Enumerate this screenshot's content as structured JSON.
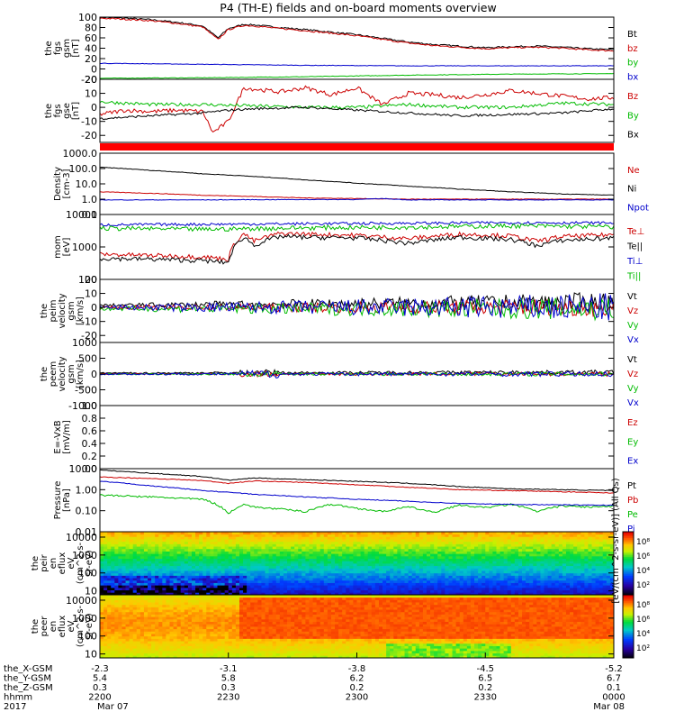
{
  "figure": {
    "title": "P4 (TH-E) fields and on-board moments overview"
  },
  "chart_data": [
    {
      "id": "fgs_bt",
      "type": "line",
      "ylabel": [
        "the",
        "fgs",
        "gsm",
        "[nT]"
      ],
      "ylim": [
        -20,
        100
      ],
      "yticks": [
        {
          "v": 100,
          "t": "100"
        },
        {
          "v": 80,
          "t": "80"
        },
        {
          "v": 60,
          "t": "60"
        },
        {
          "v": 40,
          "t": "40"
        },
        {
          "v": 20,
          "t": "20"
        },
        {
          "v": 0,
          "t": "0"
        },
        {
          "v": -20,
          "t": "-20"
        }
      ],
      "series": [
        {
          "name": "Bt",
          "color": "#000000",
          "x": [
            0,
            0.05,
            0.1,
            0.15,
            0.2,
            0.23,
            0.25,
            0.28,
            0.3,
            0.35,
            0.4,
            0.45,
            0.5,
            0.55,
            0.6,
            0.65,
            0.7,
            0.75,
            0.8,
            0.85,
            0.9,
            0.95,
            1.0
          ],
          "y": [
            100,
            98,
            95,
            90,
            83,
            60,
            78,
            86,
            85,
            80,
            76,
            71,
            66,
            59,
            52,
            47,
            44,
            41,
            43,
            44,
            42,
            39,
            37
          ],
          "noise": 1.5
        },
        {
          "name": "bz",
          "color": "#cc0000",
          "x": [
            0,
            0.05,
            0.1,
            0.15,
            0.2,
            0.23,
            0.25,
            0.28,
            0.3,
            0.35,
            0.4,
            0.45,
            0.5,
            0.55,
            0.6,
            0.65,
            0.7,
            0.75,
            0.8,
            0.85,
            0.9,
            0.95,
            1.0
          ],
          "y": [
            98,
            96,
            93,
            88,
            81,
            57,
            76,
            84,
            83,
            78,
            74,
            69,
            64,
            57,
            50,
            45,
            42,
            39,
            41,
            42,
            40,
            37,
            35
          ],
          "noise": 1.5
        },
        {
          "name": "by",
          "color": "#00bb00",
          "x": [
            0,
            0.2,
            0.4,
            0.6,
            0.8,
            1.0
          ],
          "y": [
            -18,
            -17,
            -15,
            -12,
            -10,
            -9
          ],
          "noise": 0.5
        },
        {
          "name": "bx",
          "color": "#0000cc",
          "x": [
            0,
            0.2,
            0.4,
            0.6,
            0.8,
            1.0
          ],
          "y": [
            11,
            9,
            7,
            6,
            6,
            6
          ],
          "noise": 0.5
        }
      ]
    },
    {
      "id": "fgs_gse",
      "type": "line",
      "ylabel": [
        "the",
        "fgs",
        "gse",
        "[nT]"
      ],
      "ylim": [
        -25,
        20
      ],
      "yticks": [
        {
          "v": 20,
          "t": "20"
        },
        {
          "v": 10,
          "t": "10"
        },
        {
          "v": 0,
          "t": "0"
        },
        {
          "v": -10,
          "t": "-10"
        },
        {
          "v": -20,
          "t": "-20"
        }
      ],
      "series": [
        {
          "name": "Bz",
          "color": "#cc0000",
          "x": [
            0,
            0.05,
            0.1,
            0.15,
            0.2,
            0.22,
            0.25,
            0.28,
            0.3,
            0.35,
            0.4,
            0.45,
            0.5,
            0.55,
            0.6,
            0.65,
            0.7,
            0.75,
            0.8,
            0.85,
            0.9,
            0.95,
            1.0
          ],
          "y": [
            -5,
            -2,
            -3,
            -2,
            -3,
            -18,
            -10,
            14,
            13,
            11,
            14,
            9,
            14,
            2,
            10,
            9,
            7,
            9,
            12,
            10,
            8,
            6,
            7
          ],
          "noise": 1.5
        },
        {
          "name": "By",
          "color": "#00bb00",
          "x": [
            0,
            0.1,
            0.2,
            0.3,
            0.4,
            0.5,
            0.6,
            0.7,
            0.8,
            0.9,
            1.0
          ],
          "y": [
            4,
            2,
            2,
            1,
            0,
            0,
            2,
            0,
            0,
            3,
            2
          ],
          "noise": 1.2
        },
        {
          "name": "Bx",
          "color": "#000000",
          "x": [
            0,
            0.1,
            0.2,
            0.25,
            0.3,
            0.4,
            0.5,
            0.6,
            0.7,
            0.8,
            0.9,
            1.0
          ],
          "y": [
            -8,
            -6,
            -4,
            -2,
            -1,
            0,
            -2,
            -4,
            -6,
            -5,
            -4,
            -1
          ],
          "noise": 0.8
        }
      ]
    },
    {
      "id": "density",
      "type": "line",
      "ylabel": [
        "Density",
        "[cm-3]"
      ],
      "ylim": [
        0.1,
        1000
      ],
      "log": true,
      "yticks": [
        {
          "v": 1000,
          "t": "1000.0"
        },
        {
          "v": 100,
          "t": "100.0"
        },
        {
          "v": 10,
          "t": "10.0"
        },
        {
          "v": 1,
          "t": "1.0"
        },
        {
          "v": 0.1,
          "t": "0.1"
        }
      ],
      "series": [
        {
          "name": "Ne",
          "color": "#cc0000",
          "x": [
            0,
            0.2,
            0.4,
            0.6,
            0.8,
            1.0
          ],
          "y": [
            3,
            1.8,
            1.2,
            1.0,
            1.0,
            1.0
          ],
          "noise": 0.02
        },
        {
          "name": "Ni",
          "color": "#000000",
          "x": [
            0,
            0.1,
            0.2,
            0.3,
            0.4,
            0.5,
            0.6,
            0.7,
            0.8,
            0.9,
            1.0
          ],
          "y": [
            120,
            75,
            45,
            30,
            18,
            11,
            7,
            4.5,
            3,
            2.2,
            1.8
          ],
          "noise": 0.02
        },
        {
          "name": "Npot",
          "color": "#0000cc",
          "x": [
            0,
            0.2,
            0.4,
            0.5,
            0.55,
            0.6,
            0.7,
            0.8,
            1.0
          ],
          "y": [
            0.9,
            0.9,
            0.95,
            0.95,
            1.1,
            0.9,
            0.9,
            0.9,
            0.9
          ],
          "noise": 0.02
        }
      ]
    },
    {
      "id": "temperature",
      "type": "line",
      "ylabel": [
        "mom",
        "[eV]"
      ],
      "ylim": [
        100,
        10000
      ],
      "log": true,
      "yticks": [
        {
          "v": 10000,
          "t": "10000"
        },
        {
          "v": 1000,
          "t": "1000"
        },
        {
          "v": 100,
          "t": "100"
        }
      ],
      "series": [
        {
          "name": "Te⊥",
          "color": "#cc0000",
          "x": [
            0,
            0.1,
            0.2,
            0.25,
            0.28,
            0.3,
            0.35,
            0.4,
            0.5,
            0.6,
            0.7,
            0.8,
            0.85,
            0.9,
            1.0
          ],
          "y": [
            600,
            550,
            500,
            420,
            2500,
            1500,
            2600,
            2500,
            2300,
            1800,
            2500,
            2200,
            1500,
            2100,
            2400
          ],
          "noise": 0.08
        },
        {
          "name": "Te||",
          "color": "#000000",
          "x": [
            0,
            0.1,
            0.2,
            0.25,
            0.28,
            0.3,
            0.35,
            0.4,
            0.5,
            0.6,
            0.7,
            0.8,
            0.85,
            0.9,
            1.0
          ],
          "y": [
            450,
            420,
            380,
            330,
            2000,
            1100,
            2100,
            2000,
            1900,
            1300,
            2000,
            1700,
            1100,
            1600,
            1900
          ],
          "noise": 0.08
        },
        {
          "name": "Ti⊥",
          "color": "#0000cc",
          "x": [
            0,
            0.2,
            0.4,
            0.6,
            0.8,
            1.0
          ],
          "y": [
            4800,
            5000,
            5200,
            5400,
            5600,
            5500
          ],
          "noise": 0.05
        },
        {
          "name": "Ti||",
          "color": "#00bb00",
          "x": [
            0,
            0.2,
            0.4,
            0.6,
            0.8,
            1.0
          ],
          "y": [
            3800,
            3500,
            3900,
            4100,
            4500,
            4200
          ],
          "noise": 0.08
        }
      ]
    },
    {
      "id": "peim_velocity",
      "type": "line",
      "ylabel": [
        "the",
        "peim",
        "velocity",
        "gsm",
        "[km/s]"
      ],
      "ylim": [
        -25,
        20
      ],
      "yticks": [
        {
          "v": 20,
          "t": "20"
        },
        {
          "v": 10,
          "t": "10"
        },
        {
          "v": 0,
          "t": "0"
        },
        {
          "v": -10,
          "t": "-10"
        },
        {
          "v": -20,
          "t": "-20"
        }
      ],
      "series": [
        {
          "name": "Vt",
          "color": "#000000",
          "x": [
            0,
            1
          ],
          "y": [
            1.5,
            4
          ],
          "noise": 2
        },
        {
          "name": "Vz",
          "color": "#cc0000",
          "x": [
            0,
            1
          ],
          "y": [
            0,
            0
          ],
          "noise": 2
        },
        {
          "name": "Vy",
          "color": "#00bb00",
          "x": [
            0,
            1
          ],
          "y": [
            -1,
            -1
          ],
          "noise": 2.5
        },
        {
          "name": "Vx",
          "color": "#0000cc",
          "x": [
            0,
            1
          ],
          "y": [
            0,
            0
          ],
          "noise": 3
        }
      ]
    },
    {
      "id": "peem_velocity",
      "type": "line",
      "ylabel": [
        "the",
        "peem",
        "velocity",
        "gsm",
        "[km/s]"
      ],
      "ylim": [
        -1000,
        1000
      ],
      "yticks": [
        {
          "v": 1000,
          "t": "1000"
        },
        {
          "v": 500,
          "t": "500"
        },
        {
          "v": 0,
          "t": "0"
        },
        {
          "v": -500,
          "t": "-500"
        },
        {
          "v": -1000,
          "t": "-1000"
        }
      ],
      "series": [
        {
          "name": "Vt",
          "color": "#000000",
          "x": [
            0,
            1
          ],
          "y": [
            30,
            60
          ],
          "noise": 40
        },
        {
          "name": "Vz",
          "color": "#cc0000",
          "x": [
            0,
            1
          ],
          "y": [
            0,
            0
          ],
          "noise": 40
        },
        {
          "name": "Vy",
          "color": "#00bb00",
          "x": [
            0,
            1
          ],
          "y": [
            0,
            0
          ],
          "noise": 40
        },
        {
          "name": "Vx",
          "color": "#0000cc",
          "x": [
            0,
            1
          ],
          "y": [
            0,
            0
          ],
          "noise": 50
        }
      ]
    },
    {
      "id": "e_field",
      "type": "line",
      "ylabel": [
        "E=-VxB",
        "[mV/m]"
      ],
      "ylim": [
        0,
        1
      ],
      "yticks": [
        {
          "v": 1.0,
          "t": "1.0"
        },
        {
          "v": 0.8,
          "t": "0.8"
        },
        {
          "v": 0.6,
          "t": "0.6"
        },
        {
          "v": 0.4,
          "t": "0.4"
        },
        {
          "v": 0.2,
          "t": "0.2"
        },
        {
          "v": 0.0,
          "t": "0.0"
        }
      ],
      "series": [
        {
          "name": "Ez",
          "color": "#cc0000",
          "x": [],
          "y": []
        },
        {
          "name": "Ey",
          "color": "#00bb00",
          "x": [],
          "y": []
        },
        {
          "name": "Ex",
          "color": "#0000cc",
          "x": [],
          "y": []
        }
      ]
    },
    {
      "id": "pressure",
      "type": "line",
      "ylabel": [
        "Pressure",
        "[nPa]"
      ],
      "ylim": [
        0.01,
        10
      ],
      "log": true,
      "yticks": [
        {
          "v": 10,
          "t": "10.00"
        },
        {
          "v": 1,
          "t": "1.00"
        },
        {
          "v": 0.1,
          "t": "0.10"
        },
        {
          "v": 0.01,
          "t": "0.01"
        }
      ],
      "series": [
        {
          "name": "Pt",
          "color": "#000000",
          "x": [
            0,
            0.1,
            0.2,
            0.25,
            0.3,
            0.4,
            0.5,
            0.6,
            0.7,
            0.8,
            0.9,
            1.0
          ],
          "y": [
            8.5,
            6,
            4.2,
            2.8,
            3.6,
            3,
            2.5,
            2,
            1.4,
            1.1,
            1.0,
            0.9
          ],
          "noise": 0.02
        },
        {
          "name": "Pb",
          "color": "#cc0000",
          "x": [
            0,
            0.1,
            0.2,
            0.25,
            0.3,
            0.4,
            0.5,
            0.6,
            0.7,
            0.8,
            0.9,
            1.0
          ],
          "y": [
            4,
            3.4,
            2.7,
            2,
            2.6,
            2.2,
            1.7,
            1.3,
            1.0,
            0.9,
            0.8,
            0.7
          ],
          "noise": 0.02
        },
        {
          "name": "Pe",
          "color": "#00bb00",
          "x": [
            0,
            0.05,
            0.1,
            0.15,
            0.2,
            0.25,
            0.28,
            0.3,
            0.35,
            0.4,
            0.45,
            0.5,
            0.55,
            0.6,
            0.65,
            0.7,
            0.75,
            0.8,
            0.85,
            0.9,
            0.95,
            1.0
          ],
          "y": [
            0.55,
            0.5,
            0.45,
            0.4,
            0.35,
            0.07,
            0.2,
            0.15,
            0.12,
            0.09,
            0.2,
            0.13,
            0.09,
            0.15,
            0.08,
            0.18,
            0.14,
            0.2,
            0.09,
            0.17,
            0.15,
            0.16
          ],
          "noise": 0.05
        },
        {
          "name": "Pi",
          "color": "#0000cc",
          "x": [
            0,
            0.1,
            0.2,
            0.3,
            0.4,
            0.5,
            0.6,
            0.7,
            0.8,
            0.9,
            1.0
          ],
          "y": [
            2.5,
            1.5,
            0.9,
            0.6,
            0.45,
            0.35,
            0.28,
            0.22,
            0.2,
            0.19,
            0.18
          ],
          "noise": 0.02
        }
      ]
    },
    {
      "id": "peir_eflux",
      "type": "heatmap",
      "ylabel": [
        "the",
        "peir",
        "en",
        "eflux",
        "eV",
        "(cm^2-s-",
        "sr-eV)"
      ],
      "ylim": [
        6,
        20000
      ],
      "log": true,
      "yticks": [
        {
          "v": 10000,
          "t": "10000"
        },
        {
          "v": 1000,
          "t": "1000"
        },
        {
          "v": 100,
          "t": "100"
        },
        {
          "v": 10,
          "t": "10"
        }
      ],
      "colorbar": {
        "ticks": [
          "10⁸",
          "10⁶",
          "10⁴",
          "10²"
        ]
      },
      "z_desc": "high (yellow-orange) above 1000 eV, green below 300 eV, blue/black at lowest energies before 2230"
    },
    {
      "id": "peer_eflux",
      "type": "heatmap",
      "ylabel": [
        "the",
        "peer",
        "en",
        "eflux",
        "eV",
        "(cm^2-s-",
        "sr-eV)"
      ],
      "ylim": [
        6,
        20000
      ],
      "log": true,
      "yticks": [
        {
          "v": 10000,
          "t": "10000"
        },
        {
          "v": 1000,
          "t": "1000"
        },
        {
          "v": 100,
          "t": "100"
        },
        {
          "v": 10,
          "t": "10"
        }
      ],
      "colorbar": {
        "ticks": [
          "10⁸",
          "10⁶",
          "10⁴",
          "10²"
        ]
      },
      "z_desc": "orange/red at all energies, strong red band 300-10000 eV after 2230"
    }
  ],
  "colorbar_label": "[eV/(cm^2-s-sr-eV)] (All Qs)",
  "legend_extra": {
    "peir": "[eV/(cm^2-s-sr-eV)]",
    "peer": "[eV/(cm^2-s-sr-eV)]"
  },
  "x_axis": {
    "row_labels": [
      "the_X-GSM",
      "the_Y-GSM",
      "the_Z-GSM",
      "hhmm",
      "2017"
    ],
    "ticks": [
      {
        "f": 0.0,
        "rows": [
          "-2.3",
          "5.4",
          "0.3",
          "2200",
          "Mar 07"
        ]
      },
      {
        "f": 0.25,
        "rows": [
          "-3.1",
          "5.8",
          "0.3",
          "2230",
          ""
        ]
      },
      {
        "f": 0.5,
        "rows": [
          "-3.8",
          "6.2",
          "0.2",
          "2300",
          ""
        ]
      },
      {
        "f": 0.75,
        "rows": [
          "-4.5",
          "6.5",
          "0.2",
          "2330",
          ""
        ]
      },
      {
        "f": 1.0,
        "rows": [
          "-5.2",
          "6.7",
          "0.1",
          "0000",
          "Mar 08"
        ]
      }
    ]
  },
  "colors": {
    "red_bar": "#ff0000",
    "bg": "#ffffff"
  }
}
